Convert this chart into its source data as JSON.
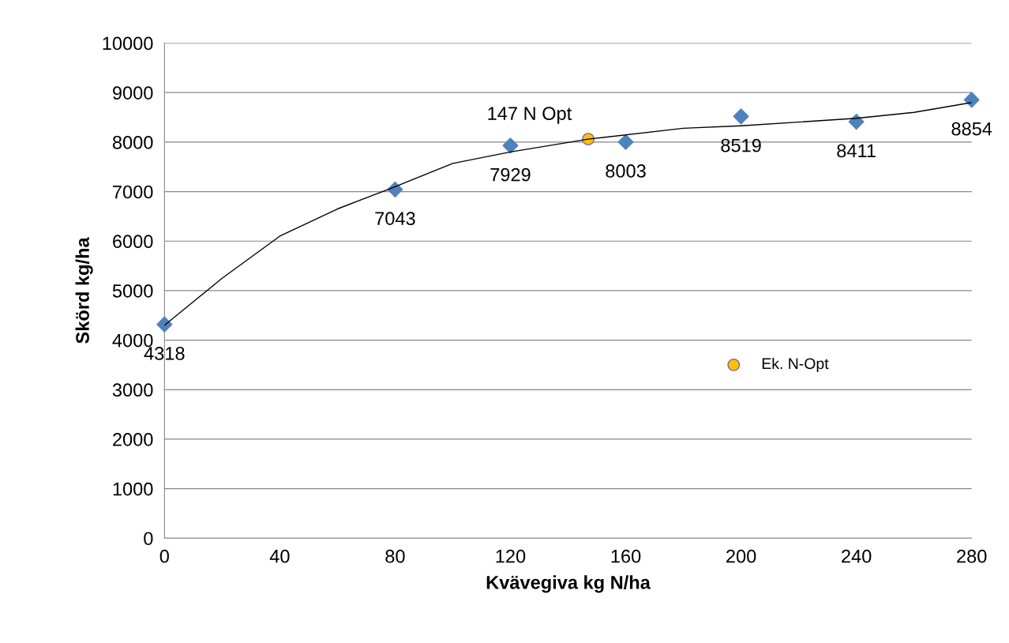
{
  "chart_data": {
    "type": "scatter",
    "xlabel": "Kvävegiva kg N/ha",
    "ylabel": "Skörd kg/ha",
    "xlim": [
      0,
      280
    ],
    "xticks": [
      0,
      40,
      80,
      120,
      160,
      200,
      240,
      280
    ],
    "ylim": [
      0,
      10000
    ],
    "yticks": [
      0,
      1000,
      2000,
      3000,
      4000,
      5000,
      6000,
      7000,
      8000,
      9000,
      10000
    ],
    "grid": "y",
    "legend": "center right",
    "annotations": [
      {
        "text": "147 N Opt",
        "x": 147,
        "y": 8060
      }
    ],
    "series": [
      {
        "type": "line",
        "color": "#000000",
        "line_style": "solid",
        "marker": "none",
        "x": [
          0,
          20,
          40,
          60,
          80,
          100,
          120,
          147,
          180,
          200,
          240,
          260,
          280
        ],
        "values": [
          4300,
          5250,
          6100,
          6650,
          7100,
          7570,
          7800,
          8060,
          8280,
          8330,
          8480,
          8600,
          8800
        ]
      },
      {
        "color": "#4f81bd",
        "marker": "diamond",
        "x": [
          0,
          80,
          120,
          160,
          200,
          240,
          280
        ],
        "values": [
          4318,
          7043,
          7929,
          8003,
          8519,
          8411,
          8854
        ],
        "value_labels": [
          "4318",
          "7043",
          "7929",
          "8003",
          "8519",
          "8411",
          "8854"
        ]
      },
      {
        "name": "Ek. N-Opt",
        "color": "#ffc000",
        "marker": "circle",
        "x": [
          147
        ],
        "values": [
          8060
        ]
      }
    ]
  }
}
